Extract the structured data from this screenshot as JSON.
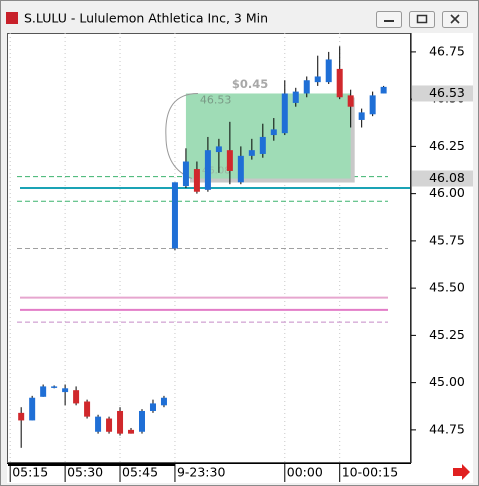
{
  "chart_data": {
    "type": "candlestick",
    "title": "S.LULU - Lululemon Athletica Inc, 3 Min",
    "x": [
      0,
      1,
      2,
      3,
      4,
      5,
      6,
      7,
      8,
      9,
      10,
      11,
      12,
      13,
      14,
      15,
      16,
      17,
      18,
      19,
      20,
      21,
      22,
      23,
      24,
      25,
      26,
      27,
      28,
      29,
      30,
      31,
      32,
      33
    ],
    "open": [
      44.84,
      44.8,
      44.925,
      44.98,
      44.95,
      44.96,
      44.9,
      44.74,
      44.81,
      44.85,
      44.75,
      44.74,
      44.85,
      44.88,
      45.71,
      46.04,
      46.13,
      46.02,
      46.22,
      46.23,
      46.06,
      46.2,
      46.21,
      46.31,
      46.32,
      46.48,
      46.53,
      46.59,
      46.59,
      46.66,
      46.52,
      46.39,
      46.42,
      46.53
    ],
    "high": [
      44.87,
      44.93,
      44.99,
      44.985,
      44.99,
      44.98,
      44.91,
      44.83,
      44.82,
      44.87,
      44.76,
      44.86,
      44.91,
      44.93,
      46.06,
      46.24,
      46.17,
      46.3,
      46.29,
      46.38,
      46.25,
      46.29,
      46.37,
      46.4,
      46.6,
      46.56,
      46.62,
      46.73,
      46.75,
      46.78,
      46.55,
      46.45,
      46.54,
      46.57
    ],
    "low": [
      44.655,
      44.8,
      44.925,
      44.97,
      44.88,
      44.88,
      44.81,
      44.73,
      44.73,
      44.72,
      44.73,
      44.73,
      44.84,
      44.87,
      45.7,
      46.03,
      46.0,
      46.01,
      46.11,
      46.05,
      46.05,
      46.18,
      46.19,
      46.28,
      46.31,
      46.46,
      46.51,
      46.57,
      46.58,
      46.5,
      46.35,
      46.35,
      46.41,
      46.53
    ],
    "close": [
      44.8,
      44.92,
      44.98,
      44.98,
      44.97,
      44.89,
      44.82,
      44.82,
      44.74,
      44.73,
      44.73,
      44.85,
      44.89,
      44.92,
      46.06,
      46.17,
      46.01,
      46.23,
      46.25,
      46.12,
      46.2,
      46.23,
      46.3,
      46.34,
      46.53,
      46.54,
      46.6,
      46.62,
      46.71,
      46.51,
      46.46,
      46.43,
      46.52,
      46.565
    ],
    "up_color": "#1f6fd6",
    "down_color": "#d0282c",
    "xlim": [
      -1.2,
      35.4
    ],
    "xticks": [
      {
        "value": -1,
        "label": "05:15"
      },
      {
        "value": 4,
        "label": "05:30"
      },
      {
        "value": 9,
        "label": "05:45"
      },
      {
        "value": 14,
        "label": "9-23:30"
      },
      {
        "value": 24,
        "label": "00:00"
      },
      {
        "value": 29,
        "label": "10-00:15"
      }
    ],
    "ylim": [
      44.58,
      46.85
    ],
    "yticks": [
      46.75,
      {
        "value": 46.5,
        "label": "46.50"
      },
      46.25,
      {
        "value": 46,
        "label": "46.00"
      },
      45.75,
      {
        "value": 45.5,
        "label": "45.50"
      },
      45.25,
      {
        "value": 45,
        "label": "45.00"
      },
      44.75
    ],
    "grid": true,
    "levels": [
      {
        "value": 46.09,
        "color": "#3cb36e",
        "style": "dashed"
      },
      {
        "value": 46.03,
        "color": "#1aa3b5",
        "style": "solid"
      },
      {
        "value": 45.96,
        "color": "#3cb36e",
        "style": "dashed"
      },
      {
        "value": 45.71,
        "color": "#a0a0a0",
        "style": "dashed"
      },
      {
        "value": 45.45,
        "color": "#e6a6cf",
        "style": "solid"
      },
      {
        "value": 45.385,
        "color": "#e27cc7",
        "style": "solid"
      },
      {
        "value": 45.32,
        "color": "#c58ac8",
        "style": "dashed"
      }
    ],
    "price_labels": [
      46.53,
      46.08
    ],
    "measure": {
      "change_label": "$0.45",
      "from": 46.08,
      "to": 46.53,
      "start": 15,
      "end": 30
    }
  }
}
